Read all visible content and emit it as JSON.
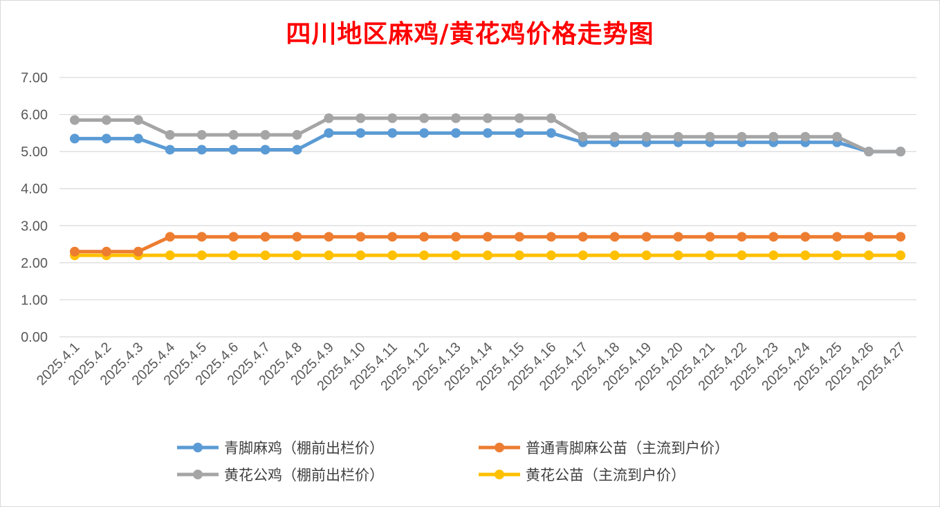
{
  "chart_data": {
    "type": "line",
    "title": "四川地区麻鸡/黄花鸡价格走势图",
    "xlabel": "",
    "ylabel": "",
    "ylim": [
      0,
      7
    ],
    "yticks": [
      "0.00",
      "1.00",
      "2.00",
      "3.00",
      "4.00",
      "5.00",
      "6.00",
      "7.00"
    ],
    "grid": true,
    "legend_position": "bottom",
    "categories": [
      "2025.4.1",
      "2025.4.2",
      "2025.4.3",
      "2025.4.4",
      "2025.4.5",
      "2025.4.6",
      "2025.4.7",
      "2025.4.8",
      "2025.4.9",
      "2025.4.10",
      "2025.4.11",
      "2025.4.12",
      "2025.4.13",
      "2025.4.14",
      "2025.4.15",
      "2025.4.16",
      "2025.4.17",
      "2025.4.18",
      "2025.4.19",
      "2025.4.20",
      "2025.4.21",
      "2025.4.22",
      "2025.4.23",
      "2025.4.24",
      "2025.4.25",
      "2025.4.26",
      "2025.4.27"
    ],
    "series": [
      {
        "name": "青脚麻鸡（棚前出栏价）",
        "color": "#5b9bd5",
        "values": [
          5.35,
          5.35,
          5.35,
          5.05,
          5.05,
          5.05,
          5.05,
          5.05,
          5.5,
          5.5,
          5.5,
          5.5,
          5.5,
          5.5,
          5.5,
          5.5,
          5.25,
          5.25,
          5.25,
          5.25,
          5.25,
          5.25,
          5.25,
          5.25,
          5.25,
          5.0,
          5.0
        ]
      },
      {
        "name": "普通青脚麻公苗（主流到户价）",
        "color": "#ed7d31",
        "values": [
          2.3,
          2.3,
          2.3,
          2.7,
          2.7,
          2.7,
          2.7,
          2.7,
          2.7,
          2.7,
          2.7,
          2.7,
          2.7,
          2.7,
          2.7,
          2.7,
          2.7,
          2.7,
          2.7,
          2.7,
          2.7,
          2.7,
          2.7,
          2.7,
          2.7,
          2.7,
          2.7
        ]
      },
      {
        "name": "黄花公鸡（棚前出栏价）",
        "color": "#a5a5a5",
        "values": [
          5.85,
          5.85,
          5.85,
          5.45,
          5.45,
          5.45,
          5.45,
          5.45,
          5.9,
          5.9,
          5.9,
          5.9,
          5.9,
          5.9,
          5.9,
          5.9,
          5.4,
          5.4,
          5.4,
          5.4,
          5.4,
          5.4,
          5.4,
          5.4,
          5.4,
          5.0,
          5.0
        ]
      },
      {
        "name": "黄花公苗（主流到户价）",
        "color": "#ffc000",
        "values": [
          2.2,
          2.2,
          2.2,
          2.2,
          2.2,
          2.2,
          2.2,
          2.2,
          2.2,
          2.2,
          2.2,
          2.2,
          2.2,
          2.2,
          2.2,
          2.2,
          2.2,
          2.2,
          2.2,
          2.2,
          2.2,
          2.2,
          2.2,
          2.2,
          2.2,
          2.2,
          2.2
        ]
      }
    ]
  }
}
